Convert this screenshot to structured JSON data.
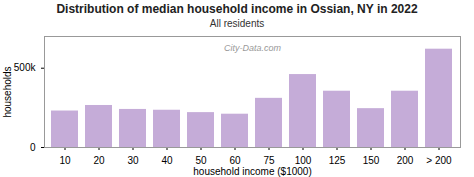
{
  "chart_data": {
    "type": "bar",
    "title": "Distribution of median household income in Ossian, NY in 2022",
    "subtitle": "All residents",
    "xlabel": "household income ($1000)",
    "ylabel": "households",
    "categories": [
      "10",
      "20",
      "30",
      "40",
      "50",
      "60",
      "75",
      "100",
      "125",
      "150",
      "200",
      "> 200"
    ],
    "values": [
      230,
      265,
      240,
      235,
      220,
      210,
      310,
      460,
      355,
      245,
      355,
      620
    ],
    "color": "#c5acd8",
    "ylim": [
      0,
      700
    ],
    "yticks": [
      0,
      {
        "value": 500,
        "label": "500k"
      }
    ],
    "grid": false,
    "annotations": [
      "City-Data.com"
    ]
  }
}
